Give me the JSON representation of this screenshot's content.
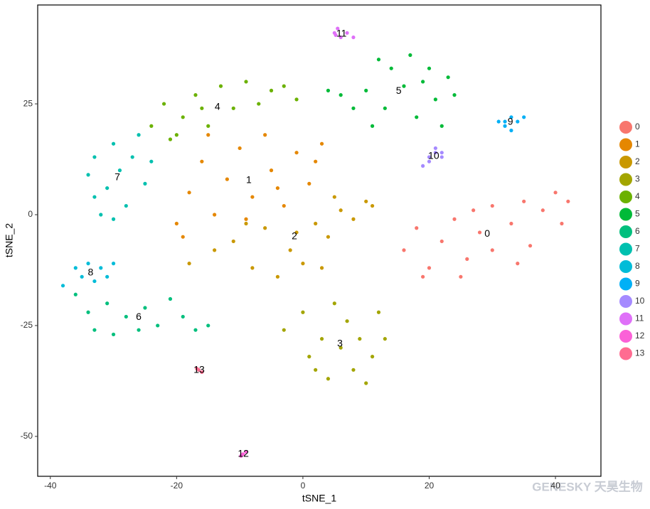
{
  "chart_data": {
    "type": "scatter",
    "xlabel": "tSNE_1",
    "ylabel": "tSNE_2",
    "watermark": "GENESKY 天昊生物",
    "xlim": [
      -42,
      47.2
    ],
    "ylim": [
      -59,
      47.3
    ],
    "xticks": [
      -40,
      -20,
      0,
      20,
      40
    ],
    "yticks": [
      -50,
      -25,
      0,
      25
    ],
    "series": [
      {
        "name": "0",
        "color": "#F8766D",
        "x": [
          16,
          18,
          20,
          22,
          24,
          26,
          28,
          30,
          30,
          33,
          35,
          36,
          38,
          40,
          41,
          25,
          19,
          34,
          42,
          27
        ],
        "y": [
          -8,
          -3,
          -12,
          -6,
          -1,
          -10,
          -4,
          -8,
          2,
          -2,
          3,
          -7,
          1,
          5,
          -2,
          -14,
          -14,
          -11,
          3,
          1
        ]
      },
      {
        "name": "1",
        "color": "#E58700",
        "x": [
          -20,
          -18,
          -16,
          -14,
          -12,
          -10,
          -8,
          -6,
          -5,
          -3,
          -1,
          1,
          3,
          -15,
          -19,
          -9,
          2,
          -4
        ],
        "y": [
          -2,
          5,
          12,
          0,
          8,
          15,
          4,
          18,
          10,
          2,
          14,
          7,
          16,
          18,
          -5,
          -1,
          12,
          6
        ]
      },
      {
        "name": "2",
        "color": "#C99800",
        "x": [
          -18,
          -14,
          -11,
          -8,
          -6,
          -4,
          -2,
          0,
          2,
          4,
          6,
          8,
          10,
          5,
          -1,
          3,
          -9,
          11
        ],
        "y": [
          -11,
          -8,
          -6,
          -12,
          -3,
          -14,
          -8,
          -11,
          -2,
          -5,
          1,
          -1,
          3,
          4,
          -4,
          -12,
          -2,
          2
        ]
      },
      {
        "name": "3",
        "color": "#A3A500",
        "x": [
          -3,
          0,
          1,
          3,
          4,
          5,
          6,
          7,
          8,
          9,
          11,
          12,
          13,
          10,
          2
        ],
        "y": [
          -26,
          -22,
          -32,
          -28,
          -37,
          -20,
          -30,
          -24,
          -35,
          -28,
          -32,
          -22,
          -28,
          -38,
          -35
        ]
      },
      {
        "name": "4",
        "color": "#6BB100",
        "x": [
          -24,
          -22,
          -21,
          -19,
          -17,
          -15,
          -13,
          -11,
          -9,
          -7,
          -5,
          -3,
          -1,
          -16,
          -20
        ],
        "y": [
          20,
          25,
          17,
          22,
          27,
          20,
          29,
          24,
          30,
          25,
          28,
          29,
          26,
          24,
          18
        ]
      },
      {
        "name": "5",
        "color": "#00BA38",
        "x": [
          4,
          6,
          8,
          10,
          11,
          13,
          14,
          16,
          17,
          18,
          19,
          20,
          21,
          22,
          23,
          24,
          12
        ],
        "y": [
          28,
          27,
          24,
          28,
          20,
          24,
          33,
          29,
          36,
          22,
          30,
          33,
          26,
          20,
          31,
          27,
          35
        ]
      },
      {
        "name": "6",
        "color": "#00BF7D",
        "x": [
          -36,
          -34,
          -33,
          -31,
          -30,
          -28,
          -26,
          -25,
          -23,
          -21,
          -19,
          -17,
          -15
        ],
        "y": [
          -18,
          -22,
          -26,
          -20,
          -27,
          -23,
          -26,
          -21,
          -25,
          -19,
          -23,
          -26,
          -25
        ]
      },
      {
        "name": "7",
        "color": "#00C0AF",
        "x": [
          -34,
          -33,
          -32,
          -31,
          -30,
          -29,
          -28,
          -27,
          -26,
          -25,
          -24,
          -30,
          -33
        ],
        "y": [
          9,
          13,
          0,
          6,
          16,
          10,
          2,
          13,
          18,
          7,
          12,
          -1,
          4
        ]
      },
      {
        "name": "8",
        "color": "#00BCD8",
        "x": [
          -38,
          -36,
          -35,
          -34,
          -33,
          -32,
          -31,
          -30
        ],
        "y": [
          -16,
          -12,
          -14,
          -11,
          -15,
          -12,
          -14,
          -11
        ]
      },
      {
        "name": "9",
        "color": "#00B0F6",
        "x": [
          31,
          32,
          33,
          34,
          35,
          33,
          32
        ],
        "y": [
          21,
          20,
          22,
          21,
          22,
          19,
          21
        ]
      },
      {
        "name": "10",
        "color": "#A58AFF",
        "x": [
          19,
          20,
          21,
          22,
          20,
          21,
          22
        ],
        "y": [
          11,
          13,
          14,
          13,
          12,
          15,
          14
        ]
      },
      {
        "name": "11",
        "color": "#DF70F8",
        "x": [
          5,
          5.5,
          6,
          7,
          8,
          5.2
        ],
        "y": [
          41,
          42,
          40,
          41,
          40,
          40.5
        ]
      },
      {
        "name": "12",
        "color": "#FB61D7",
        "x": [
          -9.5,
          -9,
          -9.8
        ],
        "y": [
          -54,
          -53.5,
          -54.4
        ]
      },
      {
        "name": "13",
        "color": "#FF6C91",
        "x": [
          -16.5,
          -16,
          -16.8
        ],
        "y": [
          -35,
          -35.5,
          -34.7
        ]
      }
    ]
  }
}
